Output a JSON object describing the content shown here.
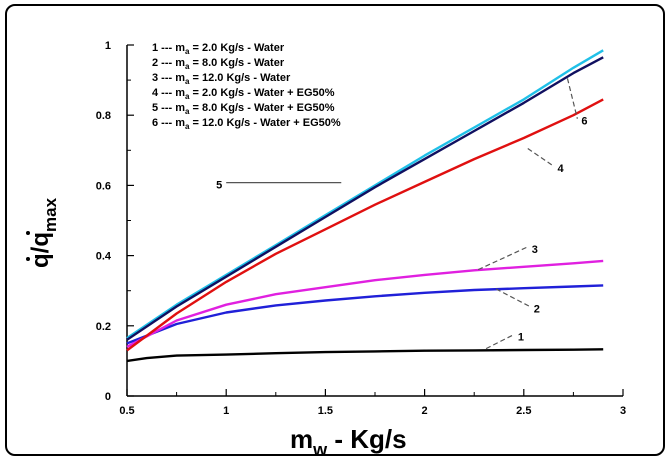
{
  "chart_data": {
    "type": "line",
    "xlabel_main": "m",
    "xlabel_sub": "w",
    "xlabel_rest": " - Kg/s",
    "ylabel_main": "q/q",
    "ylabel_sub": "max",
    "xlim": [
      0.5,
      3.0
    ],
    "ylim": [
      0.0,
      1.0
    ],
    "xticks": [
      0.5,
      1,
      1.5,
      2,
      2.5,
      3
    ],
    "xtick_labels": [
      "0.5",
      "1",
      "1.5",
      "2",
      "2.5",
      "3"
    ],
    "yticks": [
      0,
      0.2,
      0.4,
      0.6,
      0.8,
      1
    ],
    "ytick_labels": [
      "0",
      "0.2",
      "0.4",
      "0.6",
      "0.8",
      "1"
    ],
    "grid": false,
    "legend_position": "top-left",
    "legend": [
      {
        "num": "1",
        "dash": "---",
        "m": "m",
        "sub": "a",
        "text": " = 2.0  Kg/s - Water"
      },
      {
        "num": "2",
        "dash": "---",
        "m": "m",
        "sub": "a",
        "text": " = 8.0  Kg/s - Water"
      },
      {
        "num": "3",
        "dash": "---",
        "m": "m",
        "sub": "a",
        "text": " = 12.0  Kg/s - Water"
      },
      {
        "num": "4",
        "dash": "---",
        "m": "m",
        "sub": "a",
        "text": " = 2.0  Kg/s - Water + EG50%"
      },
      {
        "num": "5",
        "dash": "---",
        "m": "m",
        "sub": "a",
        "text": " = 8.0  Kg/s - Water + EG50%"
      },
      {
        "num": "6",
        "dash": "---",
        "m": "m",
        "sub": "a",
        "text": " = 12.0  Kg/s - Water + EG50%"
      }
    ],
    "series": [
      {
        "label": "1",
        "color": "#000000",
        "x": [
          0.5,
          0.6,
          0.75,
          1.0,
          1.25,
          1.5,
          1.75,
          2.0,
          2.25,
          2.5,
          2.75,
          2.9
        ],
        "y": [
          0.1,
          0.108,
          0.115,
          0.118,
          0.122,
          0.125,
          0.127,
          0.129,
          0.13,
          0.131,
          0.132,
          0.133
        ]
      },
      {
        "label": "2",
        "color": "#2020d8",
        "x": [
          0.5,
          0.75,
          1.0,
          1.25,
          1.5,
          1.75,
          2.0,
          2.25,
          2.5,
          2.75,
          2.9
        ],
        "y": [
          0.15,
          0.205,
          0.238,
          0.258,
          0.272,
          0.284,
          0.294,
          0.302,
          0.307,
          0.312,
          0.315
        ]
      },
      {
        "label": "3",
        "color": "#e020e0",
        "x": [
          0.5,
          0.75,
          1.0,
          1.25,
          1.5,
          1.75,
          2.0,
          2.25,
          2.5,
          2.75,
          2.9
        ],
        "y": [
          0.14,
          0.215,
          0.26,
          0.29,
          0.31,
          0.33,
          0.345,
          0.358,
          0.368,
          0.378,
          0.385
        ]
      },
      {
        "label": "4",
        "color": "#e01010",
        "x": [
          0.5,
          0.75,
          1.0,
          1.25,
          1.5,
          1.75,
          2.0,
          2.25,
          2.5,
          2.75,
          2.9
        ],
        "y": [
          0.13,
          0.235,
          0.325,
          0.405,
          0.475,
          0.545,
          0.61,
          0.675,
          0.735,
          0.8,
          0.845
        ]
      },
      {
        "label": "5",
        "color": "#20c0e8",
        "x": [
          0.5,
          0.75,
          1.0,
          1.25,
          1.5,
          1.75,
          2.0,
          2.25,
          2.5,
          2.75,
          2.9
        ],
        "y": [
          0.165,
          0.26,
          0.345,
          0.43,
          0.515,
          0.6,
          0.685,
          0.765,
          0.845,
          0.935,
          0.985
        ]
      },
      {
        "label": "6",
        "color": "#101060",
        "x": [
          0.5,
          0.75,
          1.0,
          1.25,
          1.5,
          1.75,
          2.0,
          2.25,
          2.5,
          2.75,
          2.9
        ],
        "y": [
          0.16,
          0.255,
          0.34,
          0.425,
          0.51,
          0.595,
          0.675,
          0.755,
          0.835,
          0.92,
          0.965
        ]
      }
    ],
    "callouts": [
      {
        "label": "1",
        "from": [
          2.31,
          0.135
        ],
        "to": [
          2.45,
          0.175
        ]
      },
      {
        "label": "2",
        "from": [
          2.36,
          0.305
        ],
        "to": [
          2.53,
          0.255
        ]
      },
      {
        "label": "3",
        "from": [
          2.27,
          0.36
        ],
        "to": [
          2.52,
          0.425
        ]
      },
      {
        "label": "4",
        "from": [
          2.52,
          0.705
        ],
        "to": [
          2.65,
          0.655
        ]
      },
      {
        "label": "5",
        "from": [
          1.58,
          0.608
        ],
        "to": [
          1.0,
          0.608
        ]
      },
      {
        "label": "6",
        "from": [
          2.72,
          0.905
        ],
        "to": [
          2.77,
          0.79
        ]
      }
    ]
  }
}
